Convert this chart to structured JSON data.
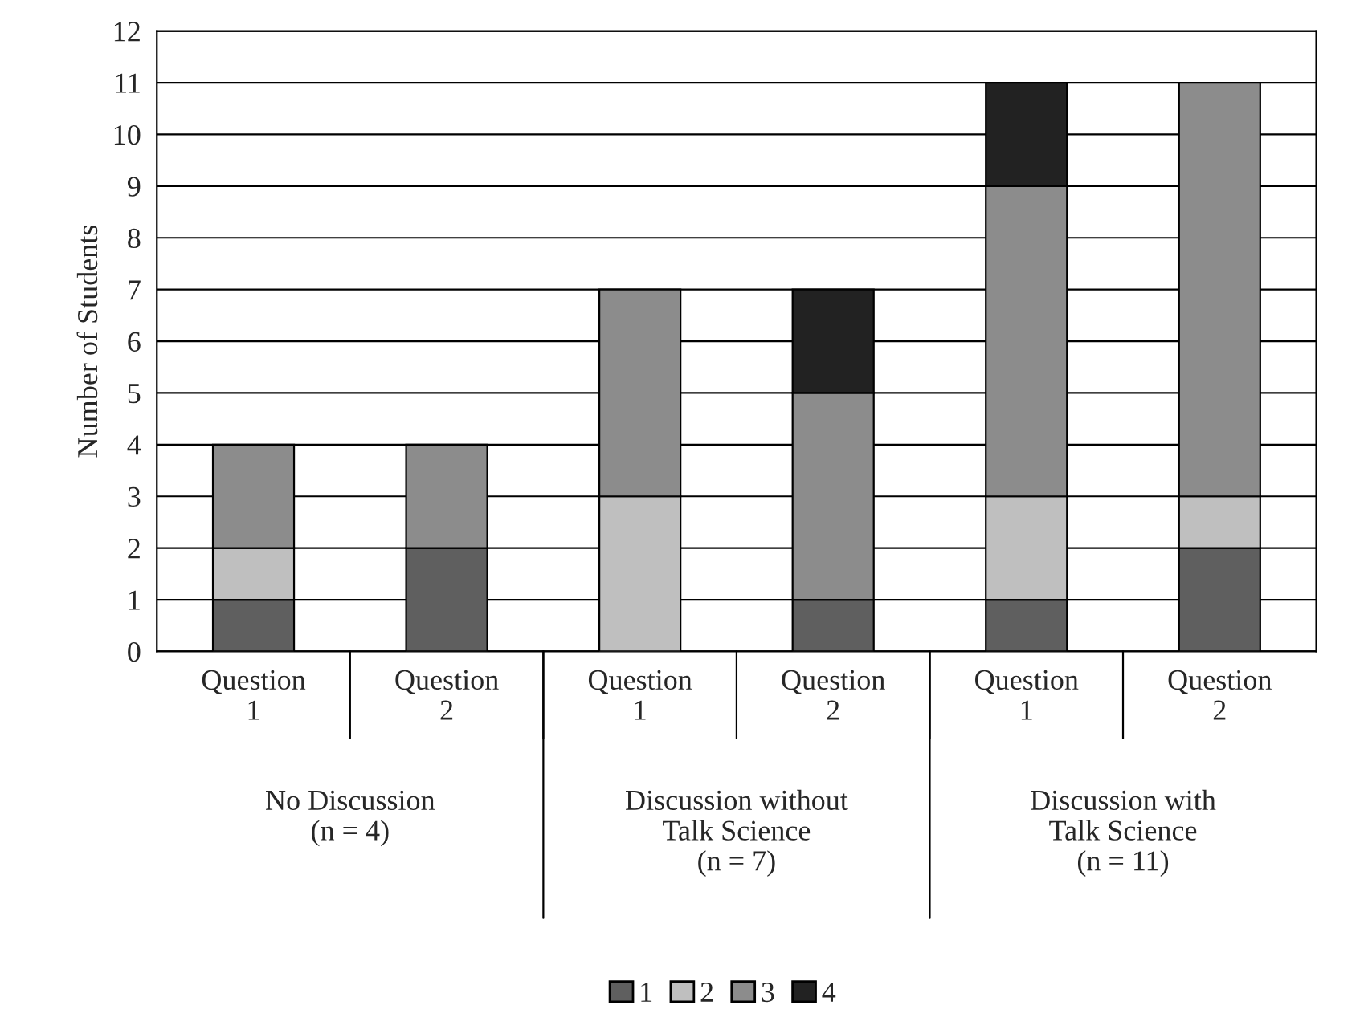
{
  "chart_data": {
    "type": "bar",
    "stacked": true,
    "ylabel": "Number of Students",
    "categories": [
      "Question\n1",
      "Question\n2",
      "Question\n1",
      "Question\n2",
      "Question\n1",
      "Question\n2"
    ],
    "series": [
      {
        "name": "1",
        "color": "#5f5f5f",
        "values": [
          1,
          2,
          0,
          1,
          1,
          2
        ]
      },
      {
        "name": "2",
        "color": "#bfbfbf",
        "values": [
          1,
          0,
          3,
          0,
          2,
          1
        ]
      },
      {
        "name": "3",
        "color": "#8c8c8c",
        "values": [
          2,
          2,
          4,
          4,
          6,
          8
        ]
      },
      {
        "name": "4",
        "color": "#222222",
        "values": [
          0,
          0,
          0,
          2,
          2,
          0
        ]
      }
    ],
    "annotations": [
      "No Discussion\n(n = 4)",
      "Discussion without\nTalk Science\n(n = 7)",
      "Discussion with\nTalk Science\n(n = 11)"
    ],
    "ylim": [
      0,
      12
    ],
    "yticks": [
      0,
      1,
      2,
      3,
      4,
      5,
      6,
      7,
      8,
      9,
      10,
      11,
      12
    ],
    "grid": "y",
    "legend": "bottom"
  }
}
